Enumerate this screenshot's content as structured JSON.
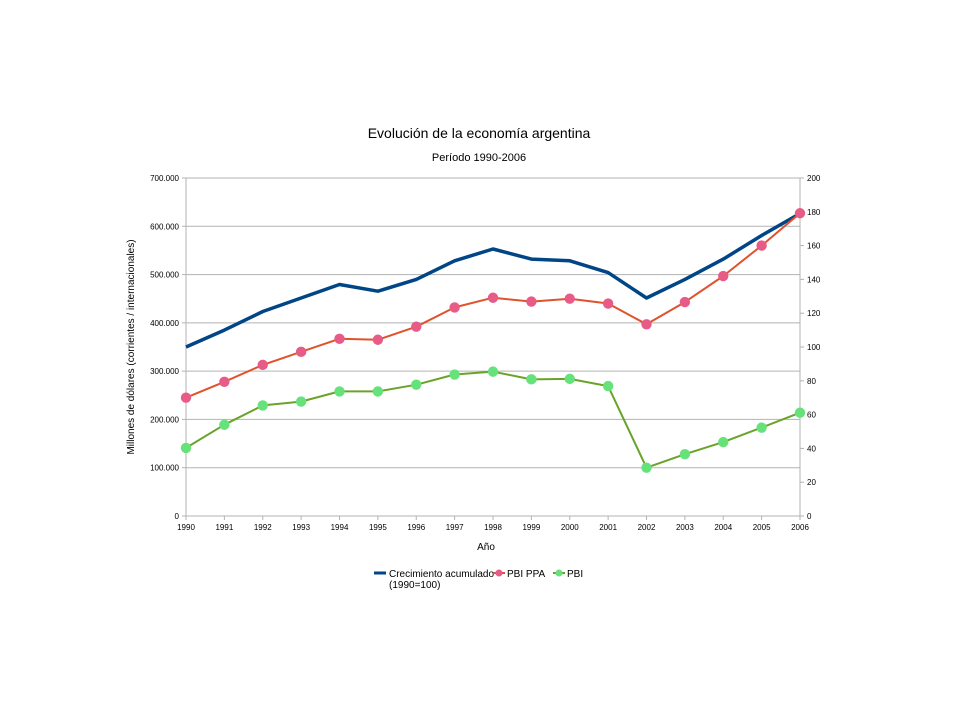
{
  "chart_data": {
    "type": "line",
    "title": "Evolución de la economía argentina",
    "subtitle": "Período 1990-2006",
    "xlabel": "Año",
    "ylabel": "Millones de dólares (corrientes / internacionales)",
    "ylim": [
      0,
      700000
    ],
    "y2lim": [
      0,
      200
    ],
    "y_ticks": [
      "0",
      "100.000",
      "200.000",
      "300.000",
      "400.000",
      "500.000",
      "600.000",
      "700.000"
    ],
    "y2_ticks": [
      "0",
      "20",
      "40",
      "60",
      "80",
      "100",
      "120",
      "140",
      "160",
      "180",
      "200"
    ],
    "categories": [
      "1990",
      "1991",
      "1992",
      "1993",
      "1994",
      "1995",
      "1996",
      "1997",
      "1998",
      "1999",
      "2000",
      "2001",
      "2002",
      "2003",
      "2004",
      "2005",
      "2006"
    ],
    "grid": true,
    "legend_position": "bottom",
    "series": [
      {
        "name": "Crecimiento acumulado",
        "name_line2": "(1990=100)",
        "axis": "right",
        "color": "#004586",
        "markers": false,
        "values": [
          100,
          110,
          121,
          129,
          137,
          133,
          140,
          151,
          158,
          152,
          151,
          144,
          129,
          140,
          152,
          166,
          179
        ]
      },
      {
        "name": "PBI PPA",
        "axis": "left",
        "color": "#e0522b",
        "marker_color": "#e85b86",
        "markers": true,
        "values": [
          245000,
          278000,
          313000,
          340000,
          367000,
          365000,
          392000,
          432000,
          452000,
          444000,
          450000,
          440000,
          397000,
          443000,
          497000,
          560000,
          627000
        ]
      },
      {
        "name": "PBI",
        "axis": "left",
        "color": "#6aa32a",
        "marker_color": "#66e27a",
        "markers": true,
        "values": [
          141000,
          189000,
          229000,
          237000,
          258000,
          258000,
          272000,
          293000,
          299000,
          283000,
          284000,
          269000,
          100000,
          128000,
          153000,
          183000,
          214000
        ]
      }
    ]
  }
}
